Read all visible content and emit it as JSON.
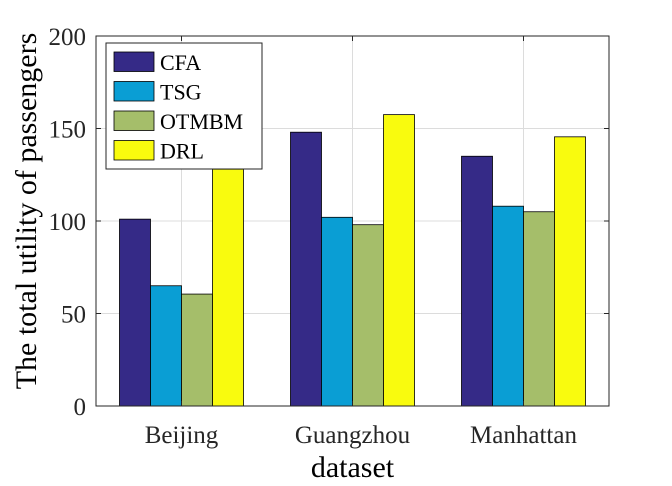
{
  "chart_data": {
    "type": "bar",
    "title": "",
    "xlabel": "dataset",
    "ylabel": "The total utility of passengers",
    "categories": [
      "Beijing",
      "Guangzhou",
      "Manhattan"
    ],
    "ylim": [
      0,
      200
    ],
    "yticks": [
      0,
      50,
      100,
      150,
      200
    ],
    "grid": true,
    "legend_position": "top-left",
    "series": [
      {
        "name": "CFA",
        "color": "#352a87",
        "values": [
          101,
          148,
          135
        ]
      },
      {
        "name": "TSG",
        "color": "#0a9ed4",
        "values": [
          65,
          102,
          108
        ]
      },
      {
        "name": "OTMBM",
        "color": "#a5be6a",
        "values": [
          60.5,
          98,
          105
        ]
      },
      {
        "name": "DRL",
        "color": "#f9fb0e",
        "values": [
          128,
          157.5,
          145.5
        ]
      }
    ]
  }
}
